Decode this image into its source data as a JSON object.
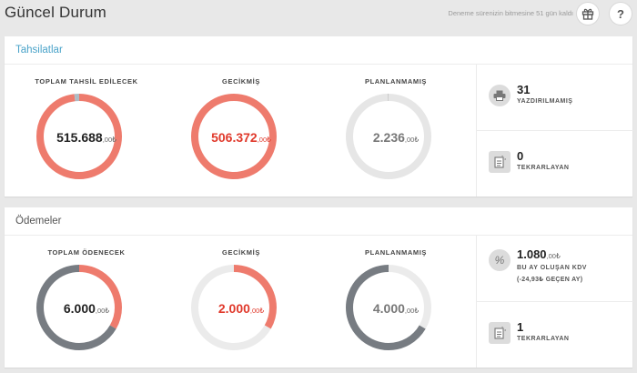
{
  "header": {
    "title": "Güncel Durum",
    "trial_text": "Deneme sürenizin bitmesine 51 gün kaldı",
    "gift_icon": "gift-icon",
    "help_label": "?"
  },
  "tahsilatlar": {
    "title": "Tahsilatlar",
    "donuts": [
      {
        "label": "TOPLAM TAHSİL EDİLECEK",
        "value_int": "515.688",
        "value_dec": ",00₺",
        "tone": "dark",
        "segments": [
          {
            "color": "#ee7b6d",
            "fraction": 0.98
          },
          {
            "color": "#aebbc4",
            "fraction": 0.02
          }
        ]
      },
      {
        "label": "GECİKMİŞ",
        "value_int": "506.372",
        "value_dec": ",00₺",
        "tone": "red",
        "segments": [
          {
            "color": "#ee7b6d",
            "fraction": 1.0
          }
        ]
      },
      {
        "label": "PLANLANMAMIŞ",
        "value_int": "2.236",
        "value_dec": ",00₺",
        "tone": "grey",
        "segments": [
          {
            "color": "#e6e6e6",
            "fraction": 0.995
          },
          {
            "color": "#c8c8c8",
            "fraction": 0.005
          }
        ]
      }
    ],
    "side": [
      {
        "icon": "printer-icon",
        "number": "31",
        "label": "YAZDIRILMAMIŞ"
      },
      {
        "icon": "recurring-document-icon",
        "number": "0",
        "label": "TEKRARLAYAN"
      }
    ]
  },
  "odemeler": {
    "title": "Ödemeler",
    "donuts": [
      {
        "label": "TOPLAM ÖDENECEK",
        "value_int": "6.000",
        "value_dec": ",00₺",
        "tone": "dark",
        "segments": [
          {
            "color": "#ee7b6d",
            "fraction": 0.333
          },
          {
            "color": "#777c82",
            "fraction": 0.667
          }
        ]
      },
      {
        "label": "GECİKMİŞ",
        "value_int": "2.000",
        "value_dec": ",00₺",
        "tone": "red",
        "segments": [
          {
            "color": "#ee7b6d",
            "fraction": 0.333
          },
          {
            "color": "#ebebeb",
            "fraction": 0.667
          }
        ]
      },
      {
        "label": "PLANLANMAMIŞ",
        "value_int": "4.000",
        "value_dec": ",00₺",
        "tone": "grey",
        "segments": [
          {
            "color": "#ebebeb",
            "fraction": 0.333
          },
          {
            "color": "#777c82",
            "fraction": 0.667
          }
        ]
      }
    ],
    "side": [
      {
        "icon": "percent-icon",
        "number": "1.080",
        "number_dec": ",00₺",
        "label": "BU AY OLUŞAN KDV",
        "sub": "(-24,93₺ GEÇEN AY)"
      },
      {
        "icon": "recurring-document-icon",
        "number": "1",
        "label": "TEKRARLAYAN"
      }
    ]
  }
}
